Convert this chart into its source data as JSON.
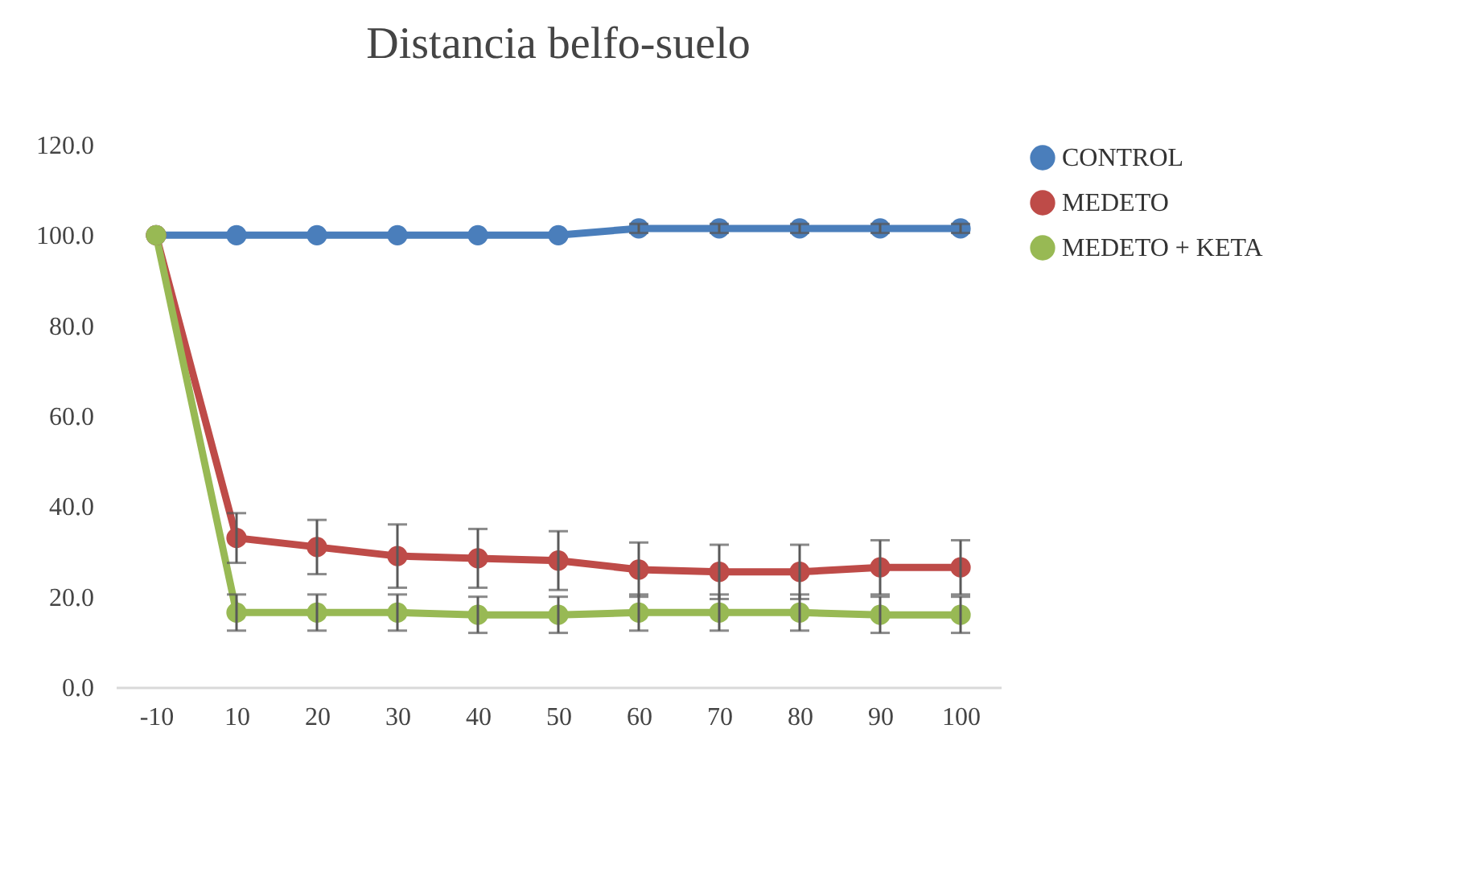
{
  "chart_data": {
    "type": "line",
    "title": "Distancia belfo-suelo",
    "categories": [
      "-10",
      "10",
      "20",
      "30",
      "40",
      "50",
      "60",
      "70",
      "80",
      "90",
      "100"
    ],
    "series": [
      {
        "name": "CONTROL",
        "color": "#4a7ebb",
        "values": [
          100,
          100,
          100,
          100,
          100,
          100,
          101.5,
          101.5,
          101.5,
          101.5,
          101.5
        ],
        "errors": [
          null,
          null,
          null,
          null,
          null,
          null,
          1,
          1,
          1,
          1,
          1
        ]
      },
      {
        "name": "MEDETO",
        "color": "#be4b48",
        "values": [
          100,
          33,
          31,
          29,
          28.5,
          28,
          26,
          25.5,
          25.5,
          26.5,
          26.5
        ],
        "errors": [
          null,
          5.5,
          6,
          7,
          6.5,
          6.5,
          6,
          6,
          6,
          6,
          6
        ]
      },
      {
        "name": "MEDETO + KETA",
        "color": "#98b954",
        "values": [
          100,
          16.5,
          16.5,
          16.5,
          16,
          16,
          16.5,
          16.5,
          16.5,
          16,
          16
        ],
        "errors": [
          null,
          4,
          4,
          4,
          4,
          4,
          4,
          4,
          4,
          4,
          4
        ]
      }
    ],
    "ylim": [
      0,
      120
    ],
    "yticks": [
      {
        "value": 0,
        "label": "0.0"
      },
      {
        "value": 20,
        "label": "20.0"
      },
      {
        "value": 40,
        "label": "40.0"
      },
      {
        "value": 60,
        "label": "60.0"
      },
      {
        "value": 80,
        "label": "80.0"
      },
      {
        "value": 100,
        "label": "100.0"
      },
      {
        "value": 120,
        "label": "120.0"
      }
    ],
    "marker": "circle",
    "line_style": "solid",
    "legend": "right",
    "grid": false
  }
}
